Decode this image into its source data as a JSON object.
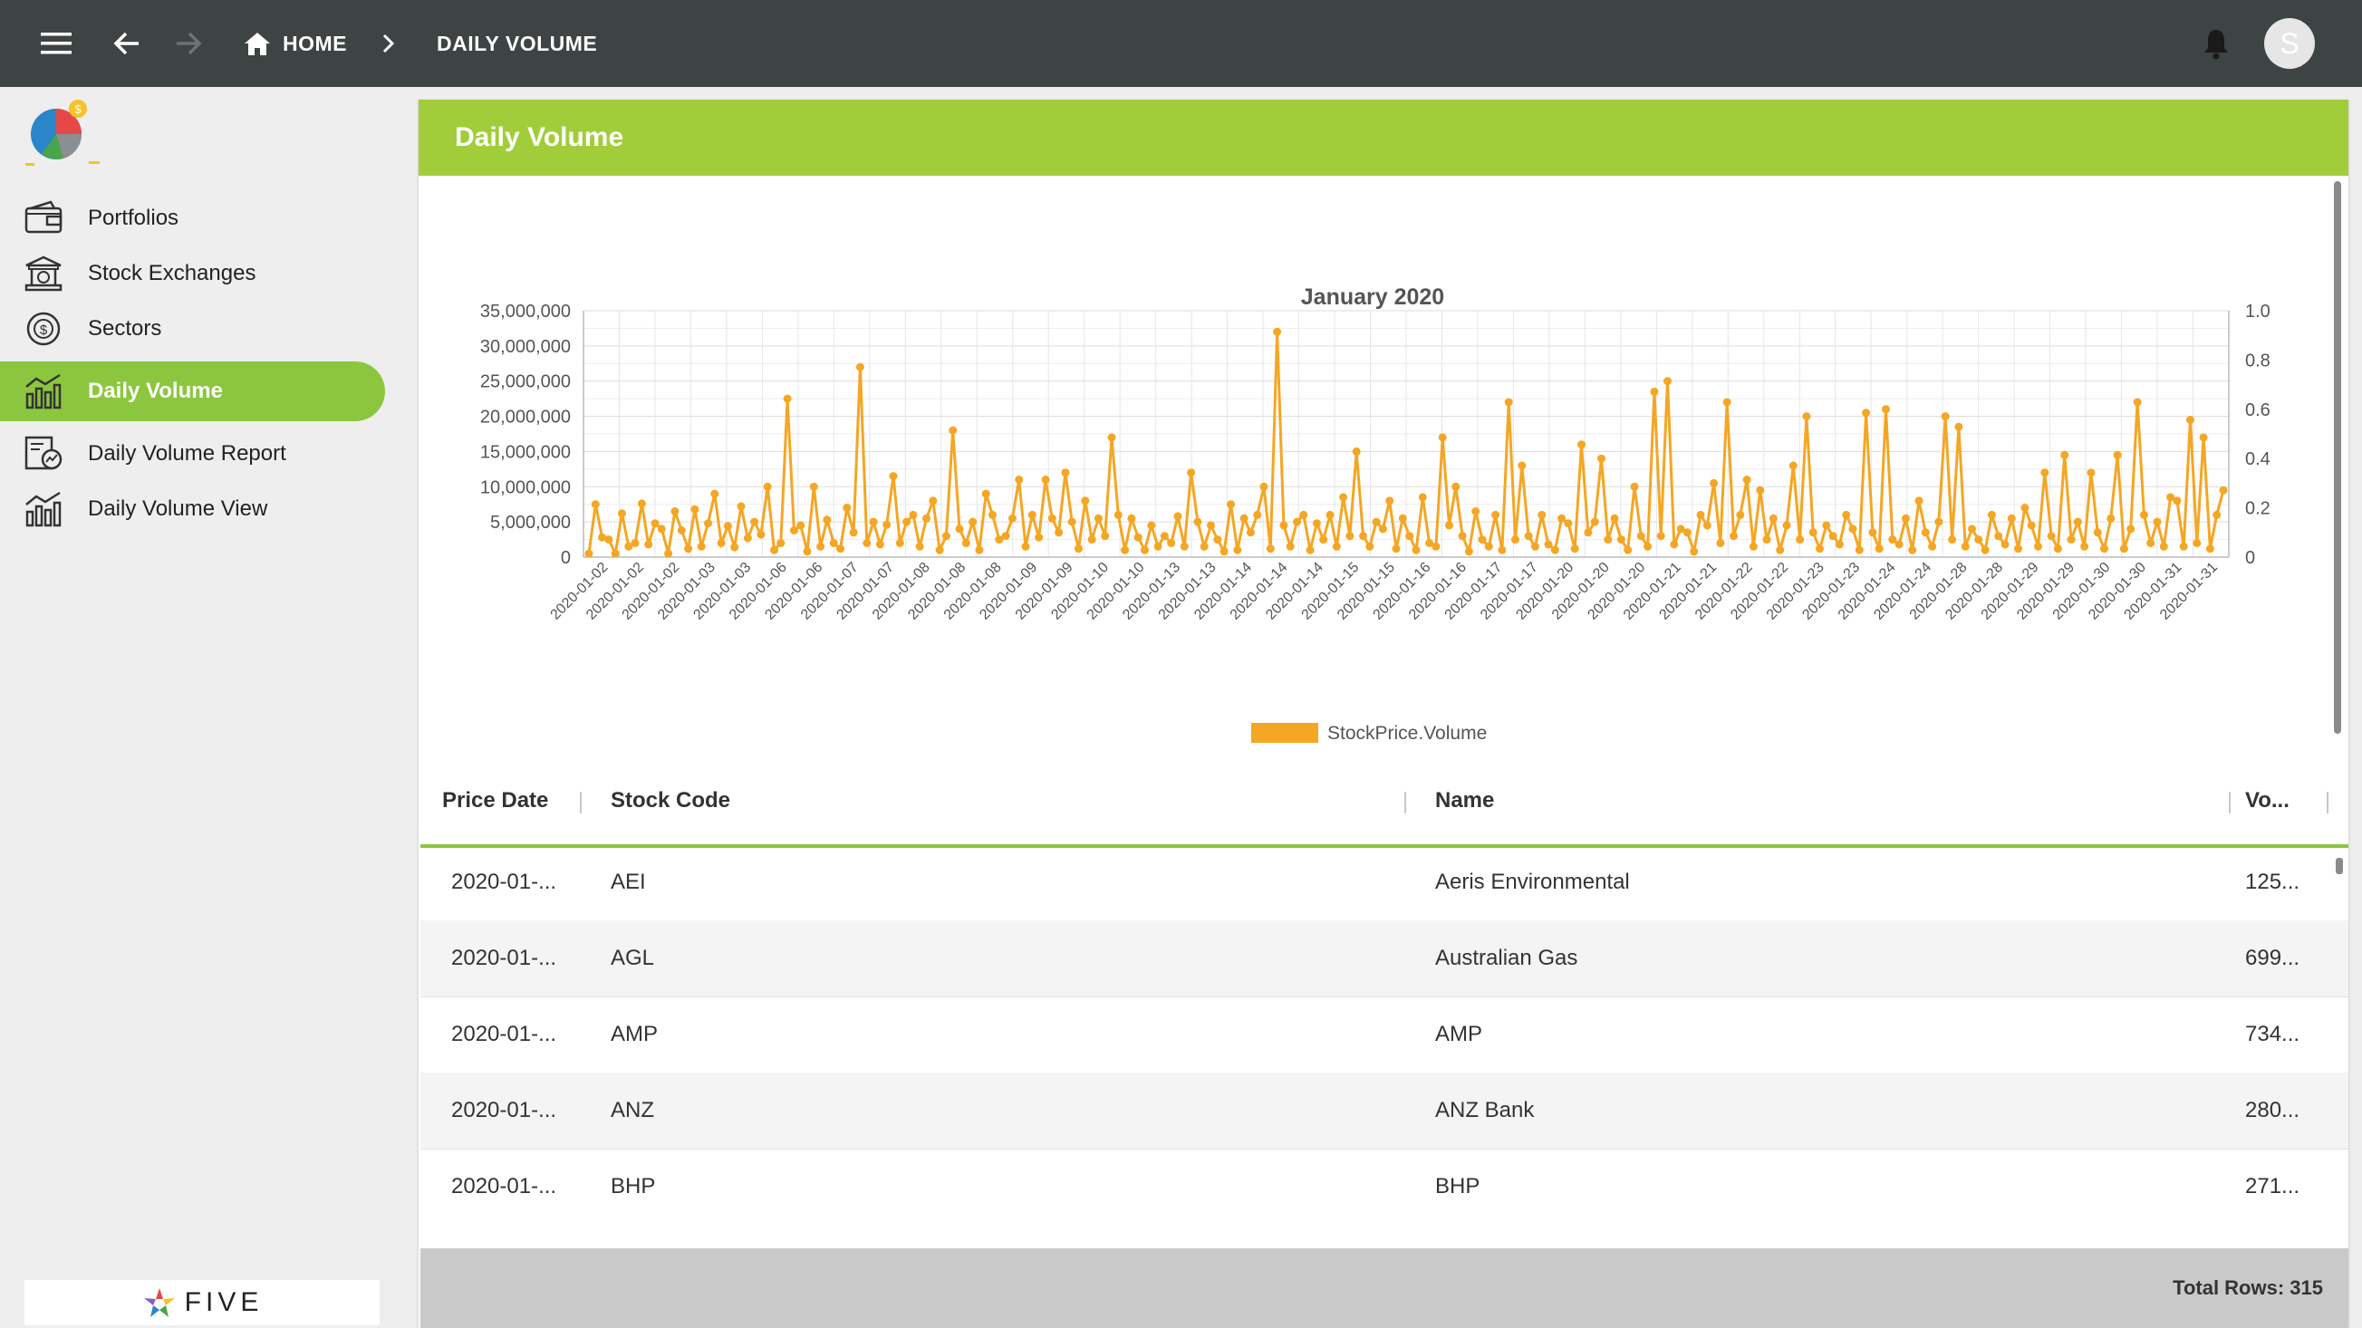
{
  "topbar": {
    "home_label": "HOME",
    "current_label": "DAILY VOLUME",
    "avatar_initial": "S",
    "background": "#3d4443"
  },
  "sidebar": {
    "items": [
      {
        "label": "Portfolios",
        "icon": "wallet-icon"
      },
      {
        "label": "Stock Exchanges",
        "icon": "bank-building-icon"
      },
      {
        "label": "Sectors",
        "icon": "dollar-cycle-icon"
      },
      {
        "label": "Daily Volume",
        "icon": "bar-chart-trend-icon",
        "active": true
      },
      {
        "label": "Daily Volume Report",
        "icon": "report-chart-icon"
      },
      {
        "label": "Daily Volume View",
        "icon": "bar-chart-trend-icon"
      }
    ],
    "brand_text": "FIVE",
    "active_color": "#8cc63f"
  },
  "panel": {
    "title": "Daily Volume",
    "header_color": "#a2cd3a"
  },
  "chart_data": {
    "type": "line",
    "title": "January 2020",
    "color": "#f5a623",
    "legend": "StockPrice.Volume",
    "legend_position": "bottom",
    "grid": true,
    "ylim": [
      0,
      35000000
    ],
    "y_ticks": [
      "35,000,000",
      "30,000,000",
      "25,000,000",
      "20,000,000",
      "15,000,000",
      "10,000,000",
      "5,000,000",
      "0"
    ],
    "y2lim": [
      0,
      1.0
    ],
    "y2_ticks": [
      "1.0",
      "0.8",
      "0.6",
      "0.4",
      "0.2",
      "0"
    ],
    "x_tick_labels": [
      "2020-01-02",
      "2020-01-02",
      "2020-01-02",
      "2020-01-03",
      "2020-01-03",
      "2020-01-06",
      "2020-01-06",
      "2020-01-07",
      "2020-01-07",
      "2020-01-08",
      "2020-01-08",
      "2020-01-08",
      "2020-01-09",
      "2020-01-09",
      "2020-01-10",
      "2020-01-10",
      "2020-01-13",
      "2020-01-13",
      "2020-01-14",
      "2020-01-14",
      "2020-01-14",
      "2020-01-15",
      "2020-01-15",
      "2020-01-16",
      "2020-01-16",
      "2020-01-17",
      "2020-01-17",
      "2020-01-20",
      "2020-01-20",
      "2020-01-20",
      "2020-01-21",
      "2020-01-21",
      "2020-01-22",
      "2020-01-22",
      "2020-01-23",
      "2020-01-23",
      "2020-01-24",
      "2020-01-24",
      "2020-01-28",
      "2020-01-28",
      "2020-01-29",
      "2020-01-29",
      "2020-01-30",
      "2020-01-30",
      "2020-01-31",
      "2020-01-31"
    ],
    "values": [
      500000,
      7500000,
      2800000,
      2500000,
      500000,
      6200000,
      1500000,
      2000000,
      7600000,
      1800000,
      4800000,
      4000000,
      500000,
      6500000,
      3800000,
      1200000,
      6800000,
      1500000,
      4800000,
      9000000,
      2000000,
      4400000,
      1400000,
      7200000,
      2700000,
      5000000,
      3200000,
      10000000,
      1000000,
      2000000,
      22500000,
      3800000,
      4500000,
      800000,
      10000000,
      1500000,
      5300000,
      2000000,
      1200000,
      7000000,
      3500000,
      27000000,
      2000000,
      5000000,
      1800000,
      4600000,
      11500000,
      2000000,
      5000000,
      6000000,
      1500000,
      5500000,
      8000000,
      1000000,
      3000000,
      18000000,
      4000000,
      2000000,
      5000000,
      1000000,
      9000000,
      6000000,
      2500000,
      3000000,
      5500000,
      11000000,
      1500000,
      6000000,
      2800000,
      11000000,
      5500000,
      3500000,
      12000000,
      5000000,
      1200000,
      8000000,
      2500000,
      5500000,
      3000000,
      17000000,
      6000000,
      1000000,
      5500000,
      2800000,
      1000000,
      4500000,
      1500000,
      3000000,
      2000000,
      5800000,
      1500000,
      12000000,
      5000000,
      1500000,
      4500000,
      2500000,
      800000,
      7500000,
      1000000,
      5500000,
      3500000,
      6000000,
      10000000,
      1200000,
      32000000,
      4500000,
      1500000,
      5000000,
      6000000,
      1000000,
      4800000,
      2500000,
      6000000,
      1500000,
      8500000,
      3000000,
      15000000,
      3000000,
      1500000,
      5000000,
      4000000,
      8000000,
      1200000,
      5500000,
      3000000,
      1000000,
      8500000,
      2000000,
      1500000,
      17000000,
      4500000,
      10000000,
      3000000,
      800000,
      6500000,
      2500000,
      1500000,
      6000000,
      1000000,
      22000000,
      2500000,
      13000000,
      3000000,
      1500000,
      6000000,
      1800000,
      1000000,
      5500000,
      4800000,
      1200000,
      16000000,
      3500000,
      5000000,
      14000000,
      2500000,
      5500000,
      2500000,
      1000000,
      10000000,
      3000000,
      1500000,
      23500000,
      3000000,
      25000000,
      1800000,
      4000000,
      3500000,
      800000,
      6000000,
      4500000,
      10500000,
      2000000,
      22000000,
      3000000,
      6000000,
      11000000,
      1500000,
      9500000,
      2500000,
      5500000,
      1000000,
      4500000,
      13000000,
      2500000,
      20000000,
      3500000,
      1200000,
      4500000,
      3000000,
      1800000,
      6000000,
      4000000,
      1000000,
      20500000,
      3500000,
      1200000,
      21000000,
      2500000,
      1800000,
      5500000,
      1000000,
      8000000,
      3500000,
      1500000,
      5000000,
      20000000,
      2500000,
      18500000,
      1500000,
      4000000,
      2500000,
      1000000,
      6000000,
      3000000,
      1800000,
      5500000,
      1200000,
      7000000,
      4500000,
      1500000,
      12000000,
      3000000,
      1200000,
      14500000,
      2500000,
      5000000,
      1500000,
      12000000,
      3500000,
      1200000,
      5500000,
      14500000,
      1200000,
      4000000,
      22000000,
      6000000,
      2000000,
      5000000,
      1500000,
      8500000,
      8000000,
      1500000,
      19500000,
      2000000,
      17000000,
      1200000,
      6000000,
      9500000
    ]
  },
  "table": {
    "columns": [
      "Price Date",
      "Stock Code",
      "Name",
      "Vo..."
    ],
    "rows": [
      {
        "date": "2020-01-...",
        "code": "AEI",
        "name": "Aeris Environmental",
        "volume": "125..."
      },
      {
        "date": "2020-01-...",
        "code": "AGL",
        "name": "Australian Gas",
        "volume": "699..."
      },
      {
        "date": "2020-01-...",
        "code": "AMP",
        "name": "AMP",
        "volume": "734..."
      },
      {
        "date": "2020-01-...",
        "code": "ANZ",
        "name": "ANZ Bank",
        "volume": "280..."
      },
      {
        "date": "2020-01-...",
        "code": "BHP",
        "name": "BHP",
        "volume": "271..."
      }
    ],
    "total_rows": "Total Rows: 315"
  }
}
